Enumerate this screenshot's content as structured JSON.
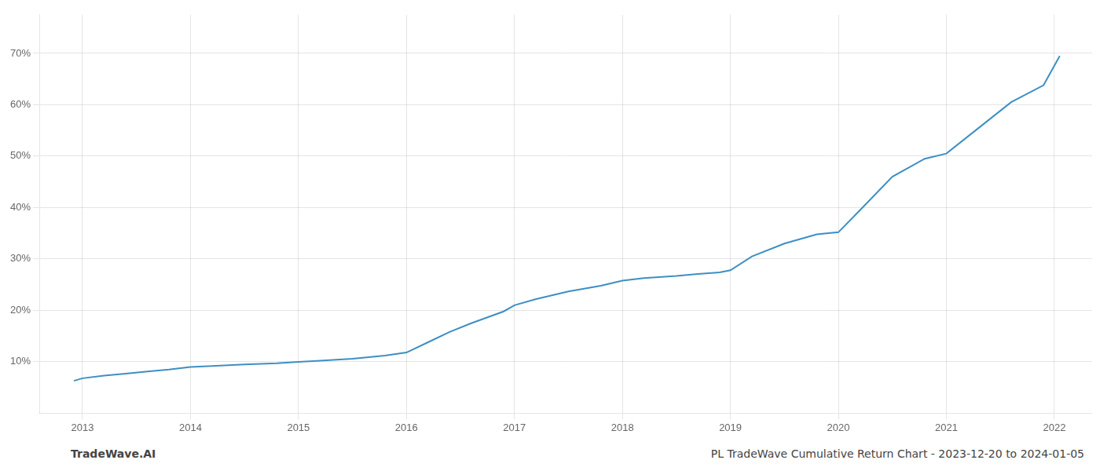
{
  "chart_data": {
    "type": "line",
    "x": [
      2012.92,
      2013.0,
      2013.2,
      2013.4,
      2013.6,
      2013.8,
      2014.0,
      2014.2,
      2014.5,
      2014.8,
      2015.0,
      2015.2,
      2015.5,
      2015.8,
      2016.0,
      2016.2,
      2016.4,
      2016.6,
      2016.9,
      2017.0,
      2017.2,
      2017.5,
      2017.8,
      2018.0,
      2018.2,
      2018.5,
      2018.7,
      2018.9,
      2019.0,
      2019.2,
      2019.5,
      2019.8,
      2020.0,
      2020.2,
      2020.5,
      2020.8,
      2021.0,
      2021.3,
      2021.6,
      2021.9,
      2022.05
    ],
    "values": [
      0.063,
      0.068,
      0.073,
      0.077,
      0.081,
      0.085,
      0.09,
      0.092,
      0.095,
      0.097,
      0.1,
      0.102,
      0.106,
      0.112,
      0.118,
      0.138,
      0.158,
      0.175,
      0.198,
      0.21,
      0.222,
      0.237,
      0.248,
      0.258,
      0.263,
      0.267,
      0.271,
      0.274,
      0.278,
      0.305,
      0.33,
      0.348,
      0.352,
      0.395,
      0.46,
      0.495,
      0.505,
      0.555,
      0.605,
      0.638,
      0.695
    ],
    "color": "#3d8fc4",
    "xlim": [
      2012.6,
      2022.35
    ],
    "xticks": [
      2013,
      2014,
      2015,
      2016,
      2017,
      2018,
      2019,
      2020,
      2021,
      2022
    ],
    "ylim": [
      0.0,
      0.775
    ],
    "yticks": [
      {
        "value": 0.1,
        "label": "10%"
      },
      {
        "value": 0.2,
        "label": "20%"
      },
      {
        "value": 0.3,
        "label": "30%"
      },
      {
        "value": 0.4,
        "label": "40%"
      },
      {
        "value": 0.5,
        "label": "50%"
      },
      {
        "value": 0.6,
        "label": "60%"
      },
      {
        "value": 0.7,
        "label": "70%"
      }
    ],
    "grid": true,
    "annotations": [
      "TradeWave.AI",
      "PL TradeWave Cumulative Return Chart - 2023-12-20 to 2024-01-05"
    ]
  }
}
